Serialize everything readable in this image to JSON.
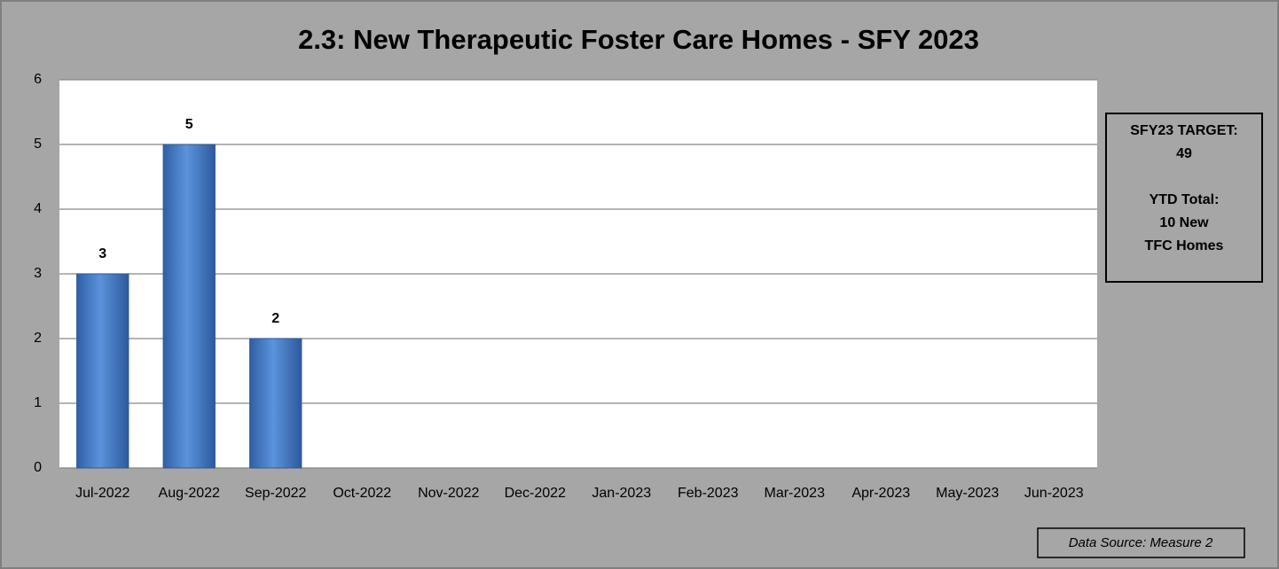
{
  "chart_data": {
    "type": "bar",
    "title": "2.3: New Therapeutic Foster Care Homes - SFY 2023",
    "categories": [
      "Jul-2022",
      "Aug-2022",
      "Sep-2022",
      "Oct-2022",
      "Nov-2022",
      "Dec-2022",
      "Jan-2023",
      "Feb-2023",
      "Mar-2023",
      "Apr-2023",
      "May-2023",
      "Jun-2023"
    ],
    "values": [
      3,
      5,
      2,
      null,
      null,
      null,
      null,
      null,
      null,
      null,
      null,
      null
    ],
    "color": "#4a7fc8",
    "ylim": [
      0,
      6
    ],
    "yticks": [
      0,
      1,
      2,
      3,
      4,
      5,
      6
    ],
    "grid": true,
    "annotations": [
      "SFY23 TARGET:",
      "49",
      "YTD Total:",
      "10 New",
      "TFC Homes"
    ],
    "source": "Data Source: Measure 2"
  }
}
